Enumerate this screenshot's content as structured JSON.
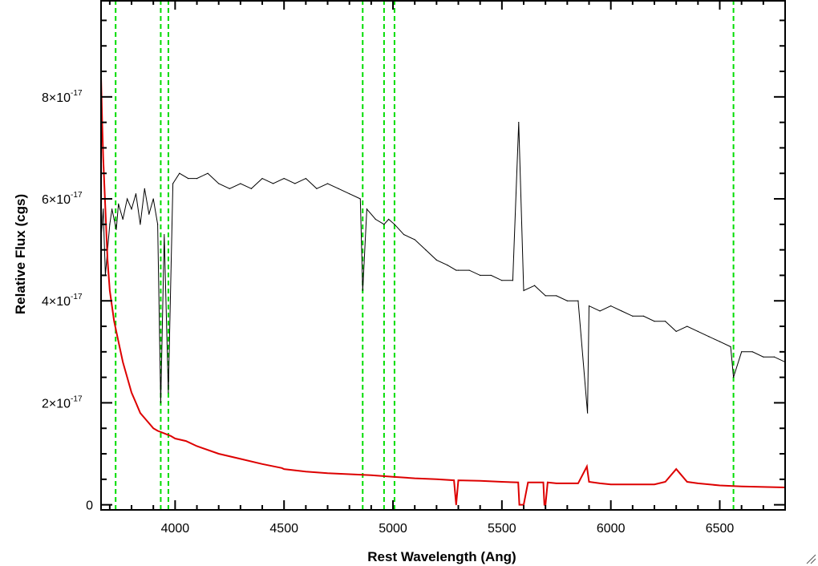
{
  "chart_data": {
    "type": "line",
    "xlabel": "Rest Wavelength (Ang)",
    "ylabel": "Relative Flux (cgs)",
    "xlim": [
      3660,
      6800
    ],
    "ylim": [
      -1e-18,
      9.9e-17
    ],
    "x_ticks": [
      4000,
      4500,
      5000,
      5500,
      6000,
      6500
    ],
    "y_ticks": [
      {
        "value": 0,
        "mantissa": "0",
        "exponent": ""
      },
      {
        "value": 2e-17,
        "mantissa": "2×10",
        "exponent": "-17"
      },
      {
        "value": 4e-17,
        "mantissa": "4×10",
        "exponent": "-17"
      },
      {
        "value": 6e-17,
        "mantissa": "6×10",
        "exponent": "-17"
      },
      {
        "value": 8e-17,
        "mantissa": "8×10",
        "exponent": "-17"
      }
    ],
    "x_minor_step": 100,
    "y_minor_step": 5e-18,
    "grid": false,
    "reference_lines": {
      "color": "#00dd00",
      "style": "dashed",
      "x": [
        3727,
        3934,
        3969,
        4861,
        4959,
        5007,
        6563
      ]
    },
    "series": [
      {
        "color": "#000000",
        "x": [
          3660,
          3670,
          3680,
          3690,
          3700,
          3710,
          3720,
          3730,
          3740,
          3760,
          3780,
          3800,
          3820,
          3840,
          3860,
          3880,
          3900,
          3920,
          3934,
          3950,
          3969,
          3990,
          4020,
          4060,
          4100,
          4150,
          4200,
          4250,
          4300,
          4350,
          4400,
          4450,
          4500,
          4550,
          4600,
          4650,
          4700,
          4750,
          4800,
          4850,
          4861,
          4880,
          4920,
          4959,
          4980,
          5007,
          5050,
          5100,
          5150,
          5200,
          5250,
          5290,
          5300,
          5350,
          5400,
          5450,
          5500,
          5550,
          5577,
          5600,
          5650,
          5700,
          5750,
          5800,
          5850,
          5893,
          5900,
          5950,
          6000,
          6050,
          6100,
          6150,
          6200,
          6250,
          6300,
          6350,
          6400,
          6450,
          6500,
          6550,
          6563,
          6600,
          6650,
          6700,
          6750,
          6800
        ],
        "y": [
          5.2e-17,
          5.8e-17,
          4.5e-17,
          5e-17,
          5.5e-17,
          5.8e-17,
          5.6e-17,
          5.4e-17,
          5.9e-17,
          5.6e-17,
          6e-17,
          5.8e-17,
          6.1e-17,
          5.5e-17,
          6.2e-17,
          5.7e-17,
          6e-17,
          5.5e-17,
          2e-17,
          5.3e-17,
          2.2e-17,
          6.3e-17,
          6.5e-17,
          6.4e-17,
          6.4e-17,
          6.5e-17,
          6.3e-17,
          6.2e-17,
          6.3e-17,
          6.2e-17,
          6.4e-17,
          6.3e-17,
          6.4e-17,
          6.3e-17,
          6.4e-17,
          6.2e-17,
          6.3e-17,
          6.2e-17,
          6.1e-17,
          6e-17,
          4.2e-17,
          5.8e-17,
          5.6e-17,
          5.5e-17,
          5.6e-17,
          5.5e-17,
          5.3e-17,
          5.2e-17,
          5e-17,
          4.8e-17,
          4.7e-17,
          4.6e-17,
          4.6e-17,
          4.6e-17,
          4.5e-17,
          4.5e-17,
          4.4e-17,
          4.4e-17,
          7.5e-17,
          4.2e-17,
          4.3e-17,
          4.1e-17,
          4.1e-17,
          4e-17,
          4e-17,
          1.8e-17,
          3.9e-17,
          3.8e-17,
          3.9e-17,
          3.8e-17,
          3.7e-17,
          3.7e-17,
          3.6e-17,
          3.6e-17,
          3.4e-17,
          3.5e-17,
          3.4e-17,
          3.3e-17,
          3.2e-17,
          3.1e-17,
          2.5e-17,
          3e-17,
          3e-17,
          2.9e-17,
          2.9e-17,
          2.8e-17
        ]
      },
      {
        "color": "#dd0000",
        "x": [
          3660,
          3665,
          3670,
          3680,
          3690,
          3700,
          3720,
          3740,
          3760,
          3780,
          3800,
          3820,
          3840,
          3860,
          3880,
          3900,
          3920,
          3950,
          3980,
          4000,
          4050,
          4100,
          4200,
          4300,
          4400,
          4490,
          4500,
          4600,
          4700,
          4800,
          4900,
          5000,
          5100,
          5200,
          5280,
          5290,
          5300,
          5400,
          5500,
          5575,
          5580,
          5600,
          5620,
          5690,
          5695,
          5700,
          5710,
          5750,
          5800,
          5850,
          5890,
          5900,
          5950,
          6000,
          6050,
          6100,
          6200,
          6250,
          6300,
          6350,
          6400,
          6500,
          6600,
          6700,
          6800
        ],
        "y": [
          8.4e-17,
          7.5e-17,
          6.8e-17,
          5.8e-17,
          4.8e-17,
          4.2e-17,
          3.6e-17,
          3.2e-17,
          2.8e-17,
          2.5e-17,
          2.2e-17,
          2e-17,
          1.8e-17,
          1.7e-17,
          1.6e-17,
          1.5e-17,
          1.45e-17,
          1.4e-17,
          1.35e-17,
          1.3e-17,
          1.25e-17,
          1.15e-17,
          1e-17,
          9e-18,
          8e-18,
          7.2e-18,
          7e-18,
          6.5e-18,
          6.2e-18,
          6e-18,
          5.8e-18,
          5.5e-18,
          5.2e-18,
          5e-18,
          4.8e-18,
          0.0,
          4.8e-18,
          4.7e-18,
          4.5e-18,
          4.4e-18,
          0.0,
          0.0,
          4.4e-18,
          4.4e-18,
          0.0,
          0.0,
          4.4e-18,
          4.2e-18,
          4.2e-18,
          4.2e-18,
          7.5e-18,
          4.5e-18,
          4.2e-18,
          4e-18,
          4e-18,
          4e-18,
          4e-18,
          4.5e-18,
          7e-18,
          4.5e-18,
          4.2e-18,
          3.8e-18,
          3.6e-18,
          3.5e-18,
          3.4e-18
        ]
      }
    ]
  }
}
